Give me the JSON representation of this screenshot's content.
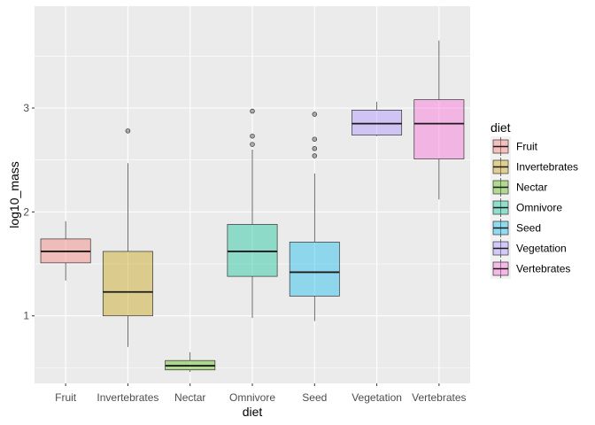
{
  "chart_data": {
    "type": "boxplot",
    "xlabel": "diet",
    "ylabel": "log10_mass",
    "ylim": [
      0.35,
      3.98
    ],
    "yticks": [
      1,
      2,
      3
    ],
    "grid": true,
    "legend": {
      "title": "diet",
      "position": "right"
    },
    "categories": [
      "Fruit",
      "Invertebrates",
      "Nectar",
      "Omnivore",
      "Seed",
      "Vegetation",
      "Vertebrates"
    ],
    "colors": [
      "#F8766D",
      "#C49A00",
      "#53B400",
      "#00C094",
      "#00B6EB",
      "#A58AFF",
      "#FB61D7"
    ],
    "series": [
      {
        "name": "Fruit",
        "lower_whisker": 1.34,
        "q1": 1.51,
        "median": 1.62,
        "q3": 1.74,
        "upper_whisker": 1.91,
        "outliers": []
      },
      {
        "name": "Invertebrates",
        "lower_whisker": 0.7,
        "q1": 1.0,
        "median": 1.23,
        "q3": 1.62,
        "upper_whisker": 2.47,
        "outliers": [
          2.78
        ]
      },
      {
        "name": "Nectar",
        "lower_whisker": 0.46,
        "q1": 0.48,
        "median": 0.52,
        "q3": 0.57,
        "upper_whisker": 0.65,
        "outliers": []
      },
      {
        "name": "Omnivore",
        "lower_whisker": 0.98,
        "q1": 1.38,
        "median": 1.62,
        "q3": 1.88,
        "upper_whisker": 2.6,
        "outliers": [
          2.65,
          2.73,
          2.97
        ]
      },
      {
        "name": "Seed",
        "lower_whisker": 0.95,
        "q1": 1.19,
        "median": 1.42,
        "q3": 1.71,
        "upper_whisker": 2.37,
        "outliers": [
          2.54,
          2.61,
          2.7,
          2.94
        ]
      },
      {
        "name": "Vegetation",
        "lower_whisker": 2.73,
        "q1": 2.74,
        "median": 2.85,
        "q3": 2.98,
        "upper_whisker": 3.06,
        "outliers": []
      },
      {
        "name": "Vertebrates",
        "lower_whisker": 2.12,
        "q1": 2.51,
        "median": 2.85,
        "q3": 3.08,
        "upper_whisker": 3.65,
        "outliers": []
      }
    ]
  }
}
